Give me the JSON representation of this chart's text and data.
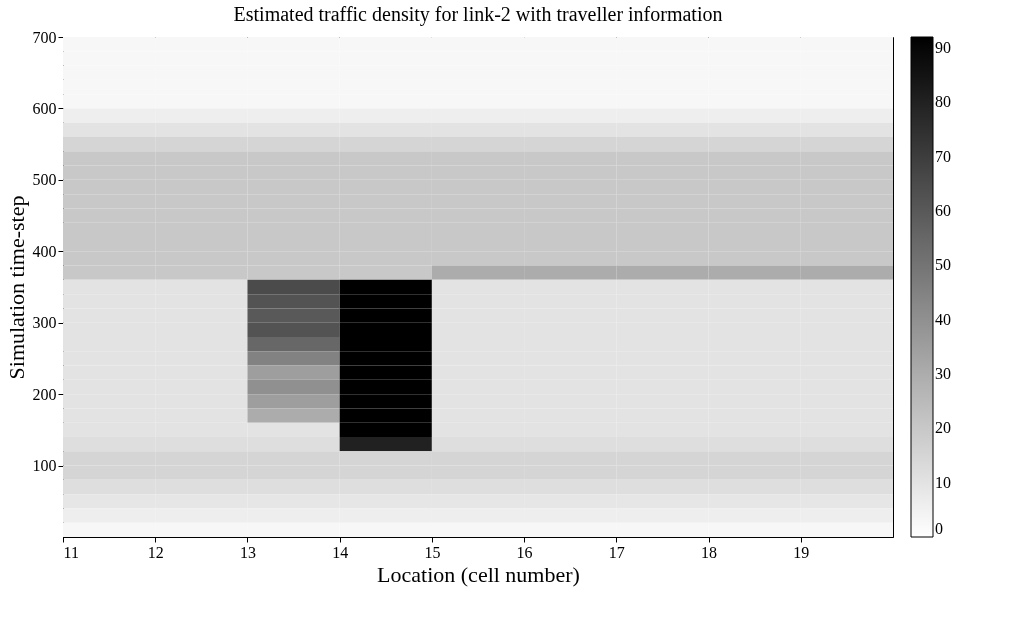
{
  "chart_data": {
    "type": "heatmap",
    "title": "Estimated traffic density for link-2 with traveller information",
    "xlabel": "Location (cell number)",
    "ylabel": "Simulation time-step",
    "x": [
      11.5,
      12.5,
      13.5,
      14.5,
      15.5,
      16.5,
      17.5,
      18.5,
      19.5
    ],
    "y": [
      690,
      670,
      650,
      630,
      610,
      590,
      570,
      550,
      530,
      510,
      490,
      470,
      450,
      430,
      410,
      390,
      370,
      350,
      330,
      310,
      290,
      270,
      250,
      230,
      210,
      190,
      170,
      150,
      130,
      110,
      90,
      70,
      50,
      30,
      10
    ],
    "xlim": [
      11,
      20
    ],
    "xticks": [
      11,
      12,
      13,
      14,
      15,
      16,
      17,
      18,
      19
    ],
    "ylim": [
      0,
      700
    ],
    "yticks": [
      100,
      200,
      300,
      400,
      500,
      600,
      700
    ],
    "clim": [
      0,
      92
    ],
    "cticks": [
      0,
      10,
      20,
      30,
      40,
      50,
      60,
      70,
      80,
      90
    ],
    "cells": [
      [
        3,
        3,
        3,
        3,
        3,
        3,
        3,
        3,
        3
      ],
      [
        3,
        3,
        3,
        3,
        3,
        3,
        3,
        3,
        3
      ],
      [
        3,
        3,
        3,
        3,
        3,
        3,
        3,
        3,
        3
      ],
      [
        3,
        3,
        3,
        3,
        3,
        3,
        3,
        3,
        3
      ],
      [
        3,
        3,
        3,
        3,
        3,
        3,
        3,
        3,
        3
      ],
      [
        6,
        6,
        6,
        6,
        6,
        6,
        6,
        6,
        6
      ],
      [
        10,
        10,
        10,
        10,
        10,
        10,
        10,
        10,
        10
      ],
      [
        15,
        15,
        15,
        15,
        15,
        15,
        15,
        15,
        15
      ],
      [
        20,
        20,
        20,
        20,
        20,
        20,
        20,
        20,
        20
      ],
      [
        20,
        20,
        20,
        20,
        20,
        20,
        20,
        20,
        20
      ],
      [
        20,
        20,
        20,
        20,
        20,
        20,
        20,
        20,
        20
      ],
      [
        20,
        20,
        20,
        20,
        20,
        20,
        20,
        20,
        20
      ],
      [
        20,
        20,
        20,
        20,
        20,
        20,
        20,
        20,
        20
      ],
      [
        20,
        20,
        20,
        20,
        20,
        20,
        20,
        20,
        20
      ],
      [
        20,
        20,
        20,
        20,
        20,
        20,
        20,
        20,
        20
      ],
      [
        20,
        20,
        20,
        20,
        20,
        20,
        20,
        20,
        20
      ],
      [
        20,
        20,
        20,
        20,
        30,
        30,
        30,
        30,
        30
      ],
      [
        10,
        10,
        65,
        92,
        10,
        10,
        10,
        10,
        10
      ],
      [
        10,
        10,
        62,
        92,
        10,
        10,
        10,
        10,
        10
      ],
      [
        10,
        10,
        60,
        92,
        10,
        10,
        10,
        10,
        10
      ],
      [
        10,
        10,
        62,
        92,
        10,
        10,
        10,
        10,
        10
      ],
      [
        10,
        10,
        55,
        92,
        10,
        10,
        10,
        10,
        10
      ],
      [
        10,
        10,
        45,
        92,
        10,
        10,
        10,
        10,
        10
      ],
      [
        10,
        10,
        35,
        92,
        10,
        10,
        10,
        10,
        10
      ],
      [
        10,
        10,
        40,
        92,
        10,
        10,
        10,
        10,
        10
      ],
      [
        10,
        10,
        35,
        92,
        10,
        10,
        10,
        10,
        10
      ],
      [
        10,
        10,
        30,
        92,
        10,
        10,
        10,
        10,
        10
      ],
      [
        10,
        10,
        10,
        92,
        10,
        10,
        10,
        10,
        10
      ],
      [
        12,
        12,
        12,
        80,
        12,
        12,
        12,
        12,
        12
      ],
      [
        15,
        15,
        15,
        15,
        15,
        15,
        15,
        15,
        15
      ],
      [
        15,
        15,
        15,
        15,
        15,
        15,
        15,
        15,
        15
      ],
      [
        12,
        12,
        12,
        12,
        12,
        12,
        12,
        12,
        12
      ],
      [
        9,
        9,
        9,
        9,
        9,
        9,
        9,
        9,
        9
      ],
      [
        6,
        6,
        6,
        6,
        6,
        6,
        6,
        6,
        6
      ],
      [
        3,
        3,
        3,
        3,
        3,
        3,
        3,
        3,
        3
      ]
    ]
  }
}
